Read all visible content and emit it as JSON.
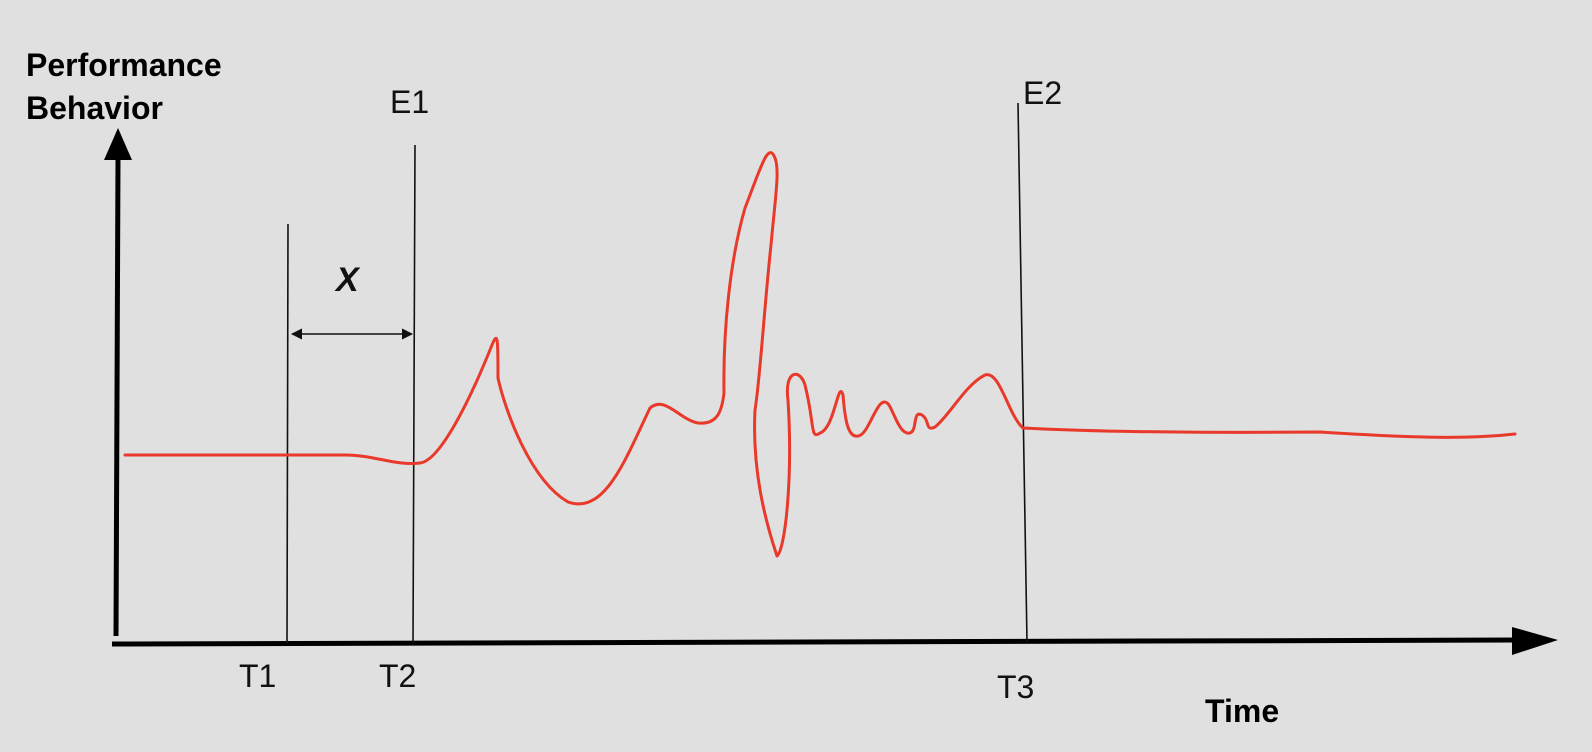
{
  "diagram": {
    "y_axis_title_line1": "Performance",
    "y_axis_title_line2": "Behavior",
    "x_axis_title": "Time",
    "time_markers": [
      "T1",
      "T2",
      "T3"
    ],
    "event_markers": [
      "E1",
      "E2"
    ],
    "interval_label": "X",
    "colors": {
      "background": "#e0e0e0",
      "axis": "#000000",
      "marker_line": "#111111",
      "curve": "#e8392b"
    }
  }
}
